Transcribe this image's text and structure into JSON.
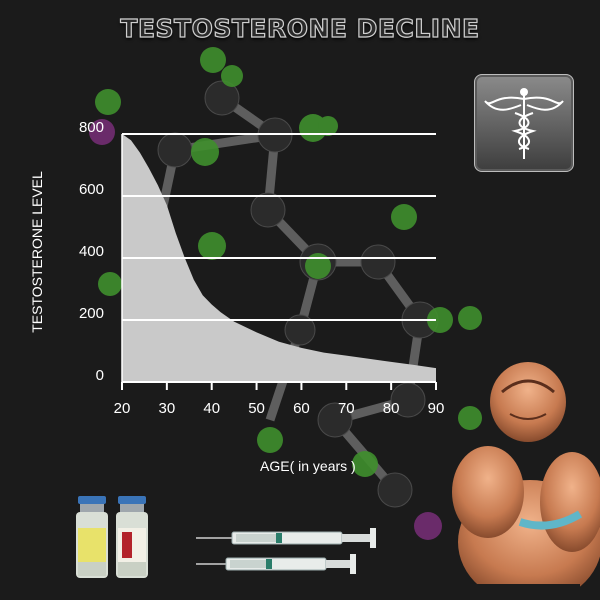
{
  "header": {
    "title": "TESTOSTERONE DECLINE"
  },
  "icons": {
    "medical": "caduceus-icon",
    "vials": "vial-icon",
    "syringes": "syringe-icon",
    "person": "bodybuilder-figure"
  },
  "colors": {
    "background": "#1b1b1b",
    "area_fill": "#c9c9c9",
    "grid": "#ffffff",
    "text": "#ffffff"
  },
  "chart_data": {
    "type": "area",
    "title": "TESTOSTERONE DECLINE",
    "xlabel": "AGE( in years )",
    "ylabel": "TESTOSTERONE LEVEL",
    "x": [
      20,
      22,
      24,
      26,
      28,
      30,
      32,
      34,
      36,
      38,
      40,
      42,
      45,
      50,
      55,
      60,
      65,
      70,
      75,
      80,
      85,
      90
    ],
    "series": [
      {
        "values": [
          800,
          780,
          740,
          690,
          635,
          570,
          480,
          400,
          330,
          280,
          250,
          225,
          195,
          160,
          130,
          110,
          95,
          85,
          75,
          65,
          55,
          45
        ]
      }
    ],
    "xlim": [
      20,
      90
    ],
    "ylim": [
      0,
      800
    ],
    "xticks": [
      20,
      30,
      40,
      50,
      60,
      70,
      80,
      90
    ],
    "yticks": [
      0,
      200,
      400,
      600,
      800
    ],
    "grid": true,
    "legend": "none"
  }
}
